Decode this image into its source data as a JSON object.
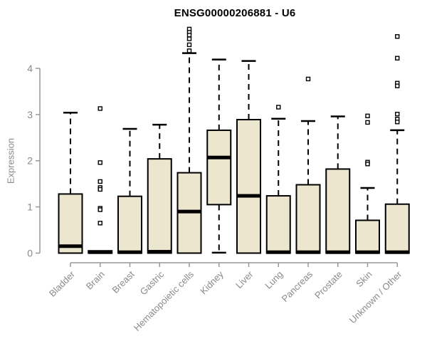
{
  "chart_data": {
    "type": "boxplot",
    "title": "ENSG00000206881 - U6",
    "ylabel": "Expression",
    "xlabel": "",
    "ylim": [
      0,
      4
    ],
    "yticks": [
      0,
      1,
      2,
      3,
      4
    ],
    "grid": false,
    "legend": "none",
    "categories": [
      "Bladder",
      "Brain",
      "Breast",
      "Gastric",
      "Hematopoietic cells",
      "Kidney",
      "Liver",
      "Lung",
      "Pancreas",
      "Prostate",
      "Skin",
      "Unknown / Other"
    ],
    "series": [
      {
        "category": "Bladder",
        "whisker_low": 0,
        "q1": 0,
        "median": 0.15,
        "q3": 1.28,
        "whisker_high": 3.04,
        "outliers": []
      },
      {
        "category": "Brain",
        "whisker_low": 0,
        "q1": 0,
        "median": 0.02,
        "q3": 0.05,
        "whisker_high": 0.05,
        "outliers": [
          3.13,
          1.96,
          1.55,
          1.42,
          1.38,
          0.97,
          0.94,
          0.65
        ]
      },
      {
        "category": "Breast",
        "whisker_low": 0,
        "q1": 0,
        "median": 0.02,
        "q3": 1.23,
        "whisker_high": 2.69,
        "outliers": []
      },
      {
        "category": "Gastric",
        "whisker_low": 0,
        "q1": 0,
        "median": 0.03,
        "q3": 2.04,
        "whisker_high": 2.78,
        "outliers": []
      },
      {
        "category": "Hematopoietic cells",
        "whisker_low": 0,
        "q1": 0,
        "median": 0.9,
        "q3": 1.74,
        "whisker_high": 4.33,
        "outliers": [
          4.85,
          4.78,
          4.72,
          4.64,
          4.51,
          4.38
        ]
      },
      {
        "category": "Kidney",
        "whisker_low": 0.01,
        "q1": 1.05,
        "median": 2.07,
        "q3": 2.66,
        "whisker_high": 4.19,
        "outliers": []
      },
      {
        "category": "Liver",
        "whisker_low": 0,
        "q1": 0,
        "median": 1.24,
        "q3": 2.89,
        "whisker_high": 4.16,
        "outliers": []
      },
      {
        "category": "Lung",
        "whisker_low": 0,
        "q1": 0,
        "median": 0.02,
        "q3": 1.24,
        "whisker_high": 2.91,
        "outliers": [
          3.16
        ]
      },
      {
        "category": "Pancreas",
        "whisker_low": 0,
        "q1": 0,
        "median": 0.02,
        "q3": 1.48,
        "whisker_high": 2.86,
        "outliers": [
          3.77
        ]
      },
      {
        "category": "Prostate",
        "whisker_low": 0,
        "q1": 0,
        "median": 0.02,
        "q3": 1.82,
        "whisker_high": 2.96,
        "outliers": []
      },
      {
        "category": "Skin",
        "whisker_low": 0,
        "q1": 0,
        "median": 0.02,
        "q3": 0.71,
        "whisker_high": 1.41,
        "outliers": [
          2.97,
          2.83,
          1.97,
          1.93
        ]
      },
      {
        "category": "Unknown / Other",
        "whisker_low": 0,
        "q1": 0,
        "median": 0.02,
        "q3": 1.06,
        "whisker_high": 2.66,
        "outliers": [
          4.69,
          4.22,
          3.68,
          3.62,
          3.01,
          2.9,
          2.84
        ]
      }
    ],
    "colors": {
      "box_fill": "#EDE6CE",
      "box_border": "#000000",
      "median": "#000000",
      "whisker": "#000000",
      "outlier_stroke": "#000000",
      "outlier_fill": "#FFFFFF",
      "axis_line": "#999999",
      "axis_text": "#8A8A8A",
      "title": "#000000",
      "background": "#FFFFFF"
    }
  }
}
